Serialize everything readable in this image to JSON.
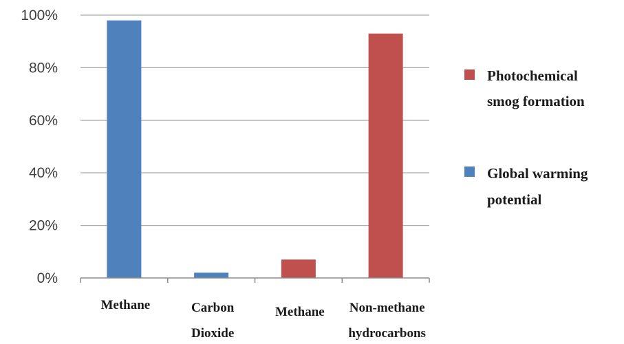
{
  "chart_data": {
    "type": "bar",
    "categories": [
      [
        "Methane"
      ],
      [
        "Carbon",
        "Dioxide"
      ],
      [
        "Methane"
      ],
      [
        "Non-methane",
        "hydrocarbons"
      ]
    ],
    "series": [
      {
        "name": "Global warming potential",
        "values": [
          98,
          2,
          null,
          null
        ]
      },
      {
        "name": "Photochemical smog formation",
        "values": [
          null,
          null,
          7,
          93
        ]
      }
    ],
    "ylim": [
      0,
      100
    ],
    "yticks": [
      "0%",
      "20%",
      "40%",
      "60%",
      "80%",
      "100%"
    ],
    "ytick_values": [
      0,
      20,
      40,
      60,
      80,
      100
    ],
    "grid": true,
    "legend_position": "right",
    "legend": [
      {
        "label": [
          "Photochemical",
          "smog formation"
        ],
        "color": "#C0504D"
      },
      {
        "label": [
          "Global warming",
          "potential"
        ],
        "color": "#4F81BD"
      }
    ],
    "colors": {
      "global": "#4F81BD",
      "smog": "#C0504D"
    },
    "title": "",
    "xlabel": "",
    "ylabel": ""
  }
}
